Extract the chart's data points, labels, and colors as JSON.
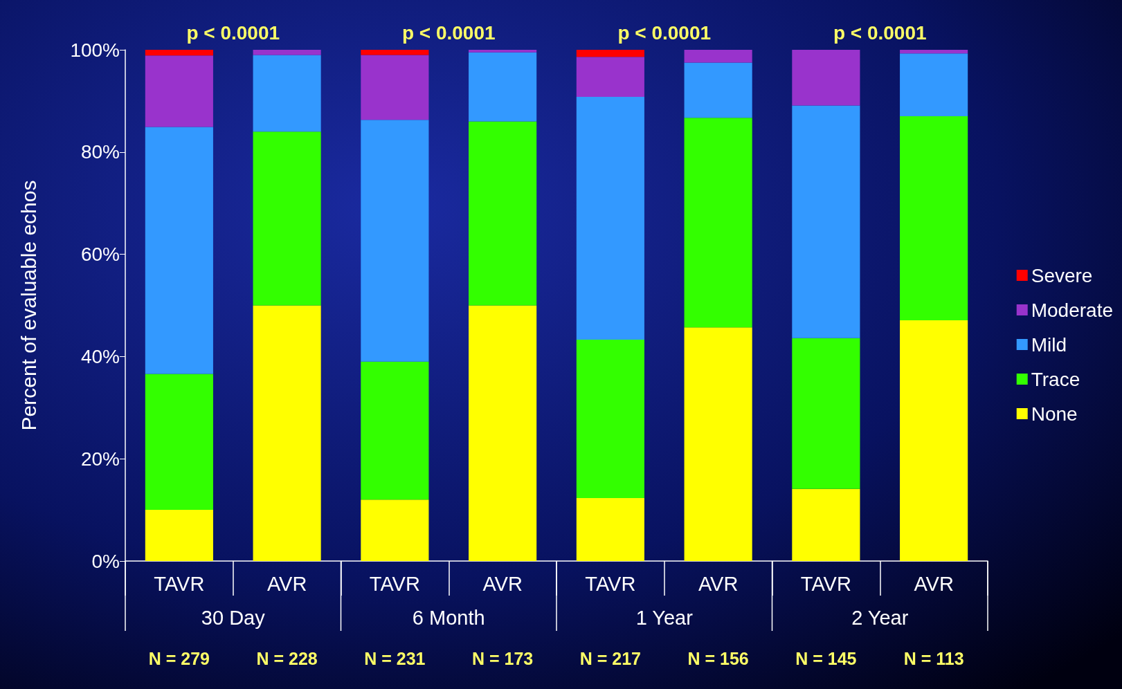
{
  "chart_data": {
    "type": "bar",
    "stacked": true,
    "ylabel": "Percent of evaluable echos",
    "categories": [
      "TAVR",
      "AVR",
      "TAVR",
      "AVR",
      "TAVR",
      "AVR",
      "TAVR",
      "AVR"
    ],
    "series": [
      {
        "name": "None",
        "color": "#ffff00",
        "values": [
          10,
          50,
          12,
          50,
          12.3,
          45.7,
          14.1,
          47.1
        ]
      },
      {
        "name": "Trace",
        "color": "#33ff00",
        "values": [
          26.6,
          34,
          27,
          36,
          31,
          41,
          29.5,
          39.9
        ]
      },
      {
        "name": "Mild",
        "color": "#3399ff",
        "values": [
          48.3,
          15,
          47.3,
          13.5,
          47.5,
          10.8,
          45.5,
          12.3
        ]
      },
      {
        "name": "Moderate",
        "color": "#9933cc",
        "values": [
          14,
          1,
          12.7,
          0.5,
          7.8,
          2.5,
          10.9,
          0.7
        ]
      },
      {
        "name": "Severe",
        "color": "#ff0000",
        "values": [
          1.1,
          0,
          1,
          0,
          1.4,
          0,
          0,
          0
        ]
      }
    ],
    "ylim": [
      0,
      100
    ],
    "yticks": [
      {
        "value": 0,
        "label": "0%"
      },
      {
        "value": 20,
        "label": "20%"
      },
      {
        "value": 40,
        "label": "40%"
      },
      {
        "value": 60,
        "label": "60%"
      },
      {
        "value": 80,
        "label": "80%"
      },
      {
        "value": 100,
        "label": "100%"
      }
    ],
    "legend": "right",
    "grid": false,
    "annotations": [
      "p < 0.0001",
      "p < 0.0001",
      "p < 0.0001",
      "p < 0.0001",
      "30 Day",
      "6 Month",
      "1 Year",
      "2 Year",
      "N = 279",
      "N = 228",
      "N = 231",
      "N = 173",
      "N = 217",
      "N = 156",
      "N = 145",
      "N = 113"
    ]
  }
}
